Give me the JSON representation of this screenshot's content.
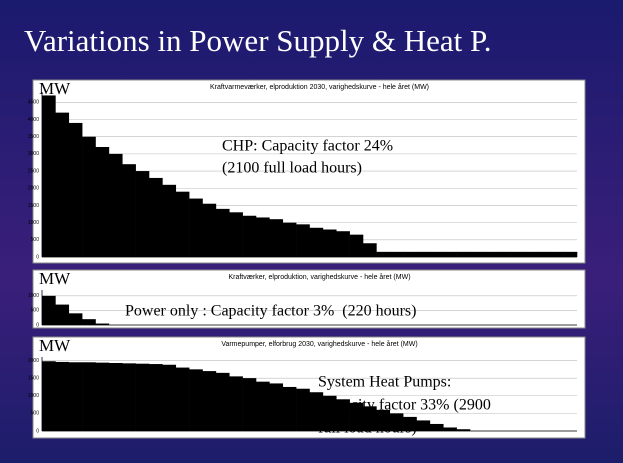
{
  "title": "Variations in Power Supply & Heat P.",
  "chart_data": [
    {
      "type": "bar",
      "title": "Kraftvarmeværker, elproduktion 2030, varighedskurve - hele året (MW)",
      "y_label": "MW",
      "color": "#000000",
      "grid": true,
      "ylim": [
        0,
        4800
      ],
      "yticks": [
        0,
        500,
        1000,
        1500,
        2000,
        2500,
        3000,
        3500,
        4000,
        4500
      ],
      "values": [
        4700,
        4200,
        3900,
        3500,
        3200,
        3000,
        2700,
        2500,
        2300,
        2100,
        1900,
        1700,
        1550,
        1400,
        1300,
        1200,
        1150,
        1100,
        1000,
        950,
        850,
        800,
        750,
        650,
        400,
        150,
        150,
        150,
        150,
        150,
        150,
        150,
        150,
        150,
        150,
        150,
        150,
        150,
        150,
        150
      ],
      "annotations": [
        "CHP: Capacity factor 24%",
        "(2100 full load hours)"
      ]
    },
    {
      "type": "bar",
      "title": "Kraftværker, elproduktion, varighedskurve - hele året (MW)",
      "y_label": "MW",
      "color": "#000000",
      "grid": true,
      "ylim": [
        0,
        1200
      ],
      "yticks": [
        0,
        500,
        1000
      ],
      "values": [
        1000,
        700,
        400,
        200,
        50,
        0,
        0,
        0,
        0,
        0,
        0,
        0,
        0,
        0,
        0,
        0,
        0,
        0,
        0,
        0,
        0,
        0,
        0,
        0,
        0,
        0,
        0,
        0,
        0,
        0,
        0,
        0,
        0,
        0,
        0,
        0,
        0,
        0,
        0,
        0
      ],
      "annotations": [
        "Power only : Capacity factor 3%  (220 hours)"
      ]
    },
    {
      "type": "bar",
      "title": "Varmepumper, elforbrug 2030, varighedskurve - hele året (MW)",
      "y_label": "MW",
      "color": "#000000",
      "grid": true,
      "ylim": [
        0,
        2100
      ],
      "yticks": [
        0,
        500,
        1000,
        1500,
        2000
      ],
      "values": [
        1980,
        1960,
        1950,
        1950,
        1940,
        1930,
        1920,
        1910,
        1900,
        1880,
        1800,
        1750,
        1700,
        1650,
        1550,
        1500,
        1400,
        1350,
        1250,
        1200,
        1100,
        1000,
        900,
        800,
        700,
        600,
        500,
        400,
        300,
        200,
        100,
        50,
        0,
        0,
        0,
        0,
        0,
        0,
        0,
        0
      ],
      "annotations": [
        "System Heat Pumps:",
        "Capacity factor 33% (2900",
        "full load hours)"
      ]
    }
  ]
}
